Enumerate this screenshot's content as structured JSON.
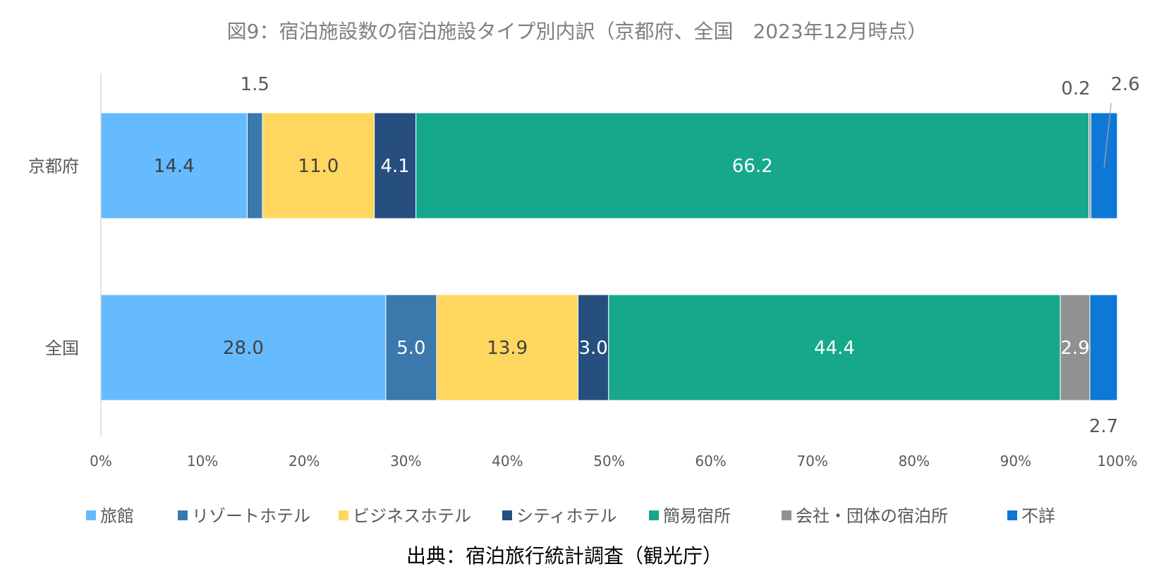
{
  "chart_data": {
    "type": "bar",
    "orientation": "horizontal",
    "stacked": "percent",
    "title": "図9：宿泊施設数の宿泊施設タイプ別内訳（京都府、全国　2023年12月時点）",
    "source": "出典：宿泊旅行統計調査（観光庁）",
    "categories": [
      "京都府",
      "全国"
    ],
    "x_ticks": [
      "0%",
      "10%",
      "20%",
      "30%",
      "40%",
      "50%",
      "60%",
      "70%",
      "80%",
      "90%",
      "100%"
    ],
    "xlim": [
      0,
      100
    ],
    "legend_position": "bottom",
    "series": [
      {
        "name": "旅館",
        "color": "#66BBFF",
        "values": [
          14.4,
          28.0
        ],
        "labels": [
          "14.4",
          "28.0"
        ]
      },
      {
        "name": "リゾートホテル",
        "color": "#3B78AC",
        "values": [
          1.5,
          5.0
        ],
        "labels": [
          "1.5",
          "5.0"
        ]
      },
      {
        "name": "ビジネスホテル",
        "color": "#FFD75E",
        "values": [
          11.0,
          13.9
        ],
        "labels": [
          "11.0",
          "13.9"
        ]
      },
      {
        "name": "シティホテル",
        "color": "#264F80",
        "values": [
          4.1,
          3.0
        ],
        "labels": [
          "4.1",
          "3.0"
        ]
      },
      {
        "name": "簡易宿所",
        "color": "#17A88B",
        "values": [
          66.2,
          44.4
        ],
        "labels": [
          "66.2",
          "44.4"
        ]
      },
      {
        "name": "会社・団体の宿泊所",
        "color": "#919191",
        "values": [
          0.2,
          2.9
        ],
        "labels": [
          "0.2",
          "2.9"
        ]
      },
      {
        "name": "不詳",
        "color": "#0E78D6",
        "values": [
          2.6,
          2.7
        ],
        "labels": [
          "2.6",
          "2.7"
        ]
      }
    ]
  }
}
